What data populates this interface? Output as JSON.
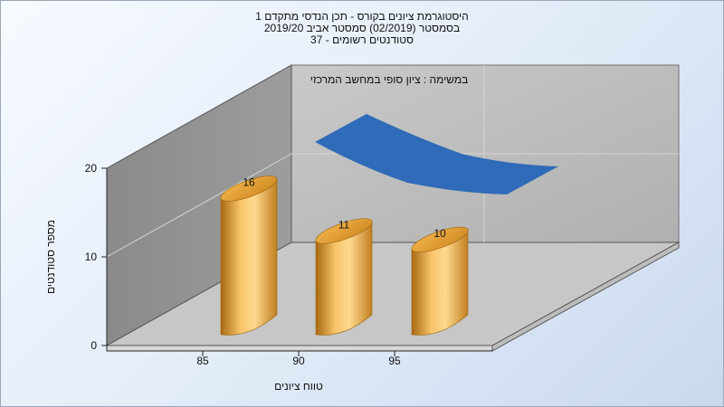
{
  "chart_data": {
    "type": "bar",
    "title_lines": [
      "היסטוגרמת ציונים בקורס - תכן הנדסי מתקדם 1",
      "בסמסטר  (02/2019)  סמסטר אביב 2019/20",
      "סטודנטים רשומים - 37"
    ],
    "annotation": "במשימה : ציון סופי במחשב המרכזי",
    "xlabel": "טווח ציונים",
    "ylabel": "מספר סטודנטים",
    "categories": [
      "85",
      "90",
      "95"
    ],
    "values": [
      16,
      11,
      10
    ],
    "y_ticks": [
      "0",
      "10",
      "20"
    ],
    "ylim": [
      0,
      20
    ],
    "bar_color": "#e8a33a",
    "ribbon_color": "#2f6bb8",
    "grid": true
  }
}
